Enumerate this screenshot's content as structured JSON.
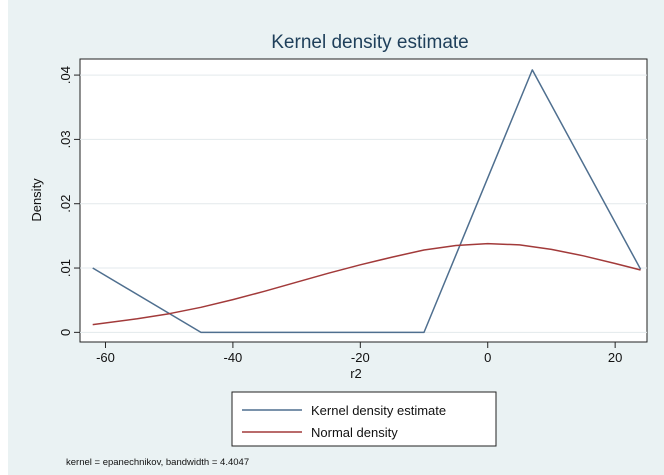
{
  "chart_data": {
    "type": "line",
    "title": "Kernel density estimate",
    "xlabel": "r2",
    "ylabel": "Density",
    "xlim": [
      -64,
      25
    ],
    "ylim": [
      -0.0015,
      0.0425
    ],
    "x_ticks": [
      -60,
      -40,
      -20,
      0,
      20
    ],
    "x_tick_labels": [
      "-60",
      "-40",
      "-20",
      "0",
      "20"
    ],
    "y_ticks": [
      0,
      0.01,
      0.02,
      0.03,
      0.04
    ],
    "y_tick_labels": [
      "0",
      ".01",
      ".02",
      ".03",
      ".04"
    ],
    "grid": "horizontal",
    "legend_position": "bottom",
    "note": "kernel = epanechnikov, bandwidth = 4.4047",
    "series": [
      {
        "name": "Kernel density estimate",
        "color": "#4f6f8f",
        "x": [
          -62,
          -45,
          -10,
          7,
          24
        ],
        "y": [
          0.01,
          0,
          0,
          0.0408,
          0.0098
        ]
      },
      {
        "name": "Normal density",
        "color": "#a23a3a",
        "x": [
          -62,
          -55,
          -50,
          -45,
          -40,
          -35,
          -30,
          -25,
          -20,
          -15,
          -10,
          -5,
          0,
          5,
          10,
          15,
          20,
          24
        ],
        "y": [
          0.0012,
          0.0021,
          0.0029,
          0.0039,
          0.0051,
          0.0064,
          0.0078,
          0.0092,
          0.0105,
          0.0117,
          0.0128,
          0.0135,
          0.0138,
          0.0136,
          0.0129,
          0.0119,
          0.0107,
          0.0097
        ]
      }
    ]
  }
}
